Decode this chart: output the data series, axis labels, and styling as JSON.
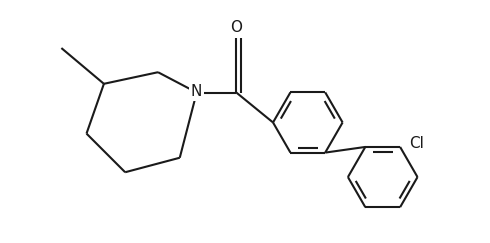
{
  "bg_color": "#ffffff",
  "line_color": "#1a1a1a",
  "line_width": 1.5,
  "font_size_N": 11,
  "font_size_O": 11,
  "font_size_Cl": 11,
  "figsize": [
    4.9,
    2.43
  ],
  "dpi": 100,
  "xlim": [
    0.0,
    9.8
  ],
  "ylim": [
    0.2,
    5.2
  ]
}
